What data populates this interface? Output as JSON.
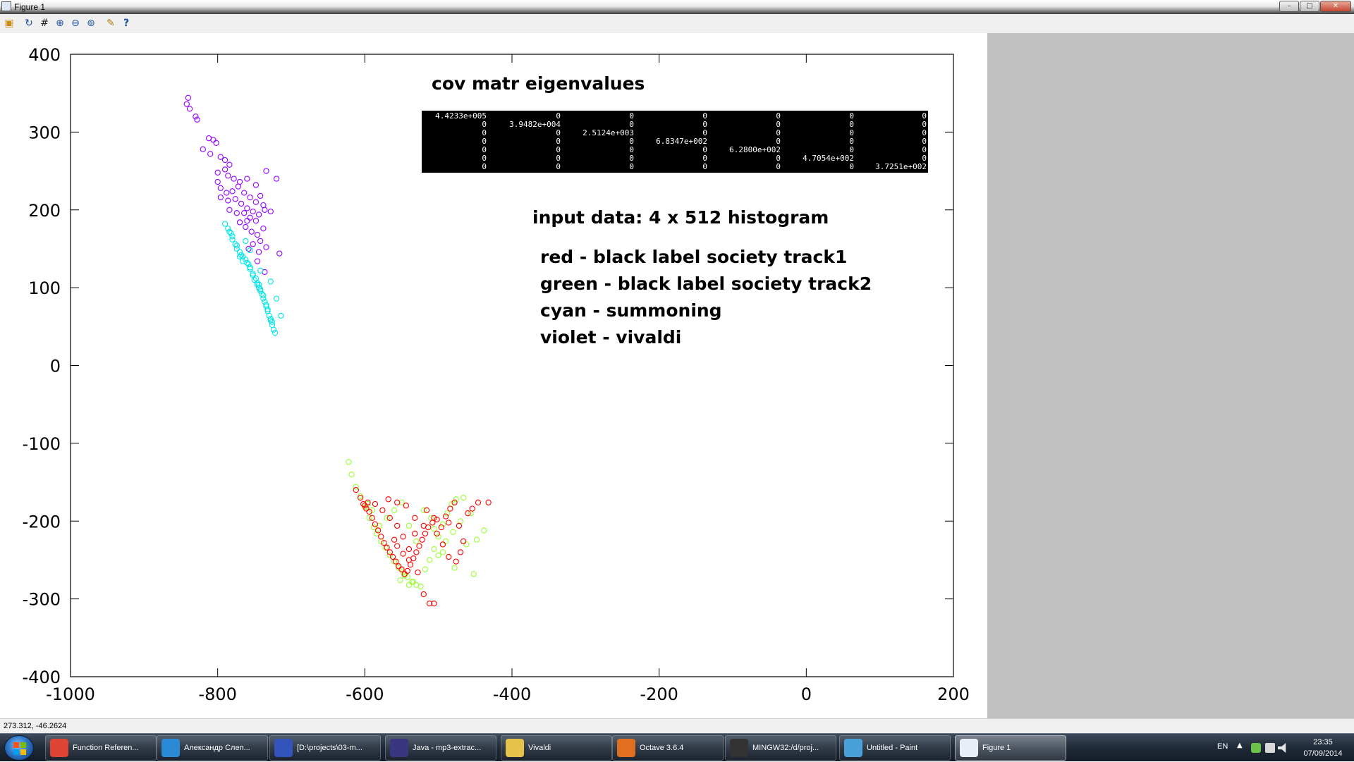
{
  "window": {
    "title": "Figure 1",
    "buttons": [
      "–",
      "□",
      "✕"
    ]
  },
  "toolbar": {
    "icons": [
      "load-icon",
      "rotate-icon",
      "grid-icon",
      "zoom-in-icon",
      "zoom-out-icon",
      "zoom-auto-icon",
      "config-icon",
      "help-icon"
    ]
  },
  "chart_data": {
    "type": "scatter",
    "xlim": [
      -1000,
      200
    ],
    "ylim": [
      -400,
      400
    ],
    "xticks": [
      -1000,
      -800,
      -600,
      -400,
      -200,
      0,
      200
    ],
    "yticks": [
      -400,
      -300,
      -200,
      -100,
      0,
      100,
      200,
      300,
      400
    ],
    "xtick_labels": [
      "-1000",
      "-800",
      "-600",
      "-400",
      "-200",
      "0",
      "200"
    ],
    "ytick_labels": [
      "-400",
      "-300",
      "-200",
      "-100",
      "0",
      "100",
      "200",
      "300",
      "400"
    ],
    "marker": "circle",
    "annotations": {
      "eigen_title": "cov matr eigenvalues",
      "input_text": "input data: 4 x 512 histogram",
      "legend_lines": [
        "red - black label society track1",
        "green - black label society track2",
        "cyan - summoning",
        "violet - vivaldi"
      ]
    },
    "eigen_matrix": [
      [
        "4.4233e+005",
        "0",
        "0",
        "0",
        "0",
        "0",
        "0"
      ],
      [
        "0",
        "3.9482e+004",
        "0",
        "0",
        "0",
        "0",
        "0"
      ],
      [
        "0",
        "0",
        "2.5124e+003",
        "0",
        "0",
        "0",
        "0"
      ],
      [
        "0",
        "0",
        "0",
        "6.8347e+002",
        "0",
        "0",
        "0"
      ],
      [
        "0",
        "0",
        "0",
        "0",
        "6.2800e+002",
        "0",
        "0"
      ],
      [
        "0",
        "0",
        "0",
        "0",
        "0",
        "4.7054e+002",
        "0"
      ],
      [
        "0",
        "0",
        "0",
        "0",
        "0",
        "0",
        "3.7251e+002"
      ]
    ],
    "series": [
      {
        "color": "#9400ff",
        "points": [
          [
            -840,
            344
          ],
          [
            -842,
            336
          ],
          [
            -838,
            330
          ],
          [
            -830,
            320
          ],
          [
            -828,
            316
          ],
          [
            -812,
            292
          ],
          [
            -806,
            290
          ],
          [
            -802,
            286
          ],
          [
            -820,
            278
          ],
          [
            -810,
            272
          ],
          [
            -796,
            268
          ],
          [
            -790,
            264
          ],
          [
            -784,
            258
          ],
          [
            -790,
            252
          ],
          [
            -800,
            248
          ],
          [
            -786,
            244
          ],
          [
            -778,
            240
          ],
          [
            -770,
            236
          ],
          [
            -760,
            240
          ],
          [
            -748,
            232
          ],
          [
            -734,
            250
          ],
          [
            -720,
            240
          ],
          [
            -800,
            236
          ],
          [
            -796,
            228
          ],
          [
            -788,
            222
          ],
          [
            -780,
            224
          ],
          [
            -772,
            230
          ],
          [
            -764,
            222
          ],
          [
            -756,
            216
          ],
          [
            -748,
            210
          ],
          [
            -742,
            218
          ],
          [
            -738,
            206
          ],
          [
            -776,
            214
          ],
          [
            -768,
            208
          ],
          [
            -760,
            202
          ],
          [
            -752,
            198
          ],
          [
            -744,
            194
          ],
          [
            -736,
            200
          ],
          [
            -728,
            198
          ],
          [
            -764,
            196
          ],
          [
            -756,
            190
          ],
          [
            -748,
            186
          ],
          [
            -770,
            184
          ],
          [
            -762,
            178
          ],
          [
            -754,
            172
          ],
          [
            -746,
            168
          ],
          [
            -738,
            176
          ],
          [
            -742,
            160
          ],
          [
            -752,
            156
          ],
          [
            -758,
            150
          ],
          [
            -744,
            146
          ],
          [
            -734,
            152
          ],
          [
            -716,
            144
          ],
          [
            -746,
            134
          ],
          [
            -736,
            120
          ],
          [
            -784,
            200
          ],
          [
            -774,
            196
          ],
          [
            -760,
            186
          ],
          [
            -786,
            212
          ],
          [
            -796,
            216
          ]
        ]
      },
      {
        "color": "#00e5e5",
        "points": [
          [
            -790,
            182
          ],
          [
            -786,
            176
          ],
          [
            -782,
            170
          ],
          [
            -780,
            162
          ],
          [
            -776,
            156
          ],
          [
            -774,
            150
          ],
          [
            -770,
            146
          ],
          [
            -766,
            140
          ],
          [
            -762,
            136
          ],
          [
            -758,
            130
          ],
          [
            -756,
            124
          ],
          [
            -752,
            118
          ],
          [
            -748,
            112
          ],
          [
            -746,
            106
          ],
          [
            -744,
            100
          ],
          [
            -742,
            96
          ],
          [
            -740,
            92
          ],
          [
            -738,
            86
          ],
          [
            -736,
            82
          ],
          [
            -734,
            76
          ],
          [
            -732,
            70
          ],
          [
            -730,
            64
          ],
          [
            -728,
            58
          ],
          [
            -726,
            52
          ],
          [
            -724,
            46
          ],
          [
            -722,
            42
          ],
          [
            -728,
            60
          ],
          [
            -732,
            72
          ],
          [
            -738,
            90
          ],
          [
            -742,
            98
          ],
          [
            -746,
            104
          ],
          [
            -752,
            116
          ],
          [
            -756,
            126
          ],
          [
            -760,
            132
          ],
          [
            -768,
            142
          ],
          [
            -774,
            154
          ],
          [
            -780,
            166
          ],
          [
            -784,
            172
          ],
          [
            -770,
            140
          ],
          [
            -766,
            134
          ],
          [
            -750,
            110
          ],
          [
            -744,
            104
          ],
          [
            -734,
            78
          ],
          [
            -726,
            56
          ],
          [
            -714,
            64
          ],
          [
            -720,
            86
          ],
          [
            -728,
            108
          ],
          [
            -742,
            122
          ],
          [
            -756,
            148
          ],
          [
            -762,
            160
          ]
        ]
      },
      {
        "color": "#99ff33",
        "points": [
          [
            -622,
            -124
          ],
          [
            -618,
            -140
          ],
          [
            -612,
            -156
          ],
          [
            -606,
            -168
          ],
          [
            -600,
            -182
          ],
          [
            -594,
            -196
          ],
          [
            -588,
            -208
          ],
          [
            -584,
            -216
          ],
          [
            -578,
            -226
          ],
          [
            -572,
            -234
          ],
          [
            -566,
            -244
          ],
          [
            -560,
            -252
          ],
          [
            -554,
            -260
          ],
          [
            -548,
            -266
          ],
          [
            -542,
            -272
          ],
          [
            -536,
            -278
          ],
          [
            -530,
            -282
          ],
          [
            -524,
            -284
          ],
          [
            -518,
            -262
          ],
          [
            -512,
            -250
          ],
          [
            -506,
            -236
          ],
          [
            -500,
            -220
          ],
          [
            -494,
            -204
          ],
          [
            -488,
            -190
          ],
          [
            -482,
            -178
          ],
          [
            -476,
            -172
          ],
          [
            -466,
            -170
          ],
          [
            -456,
            -190
          ],
          [
            -448,
            -224
          ],
          [
            -438,
            -212
          ],
          [
            -452,
            -268
          ],
          [
            -470,
            -200
          ],
          [
            -480,
            -214
          ],
          [
            -490,
            -226
          ],
          [
            -500,
            -244
          ],
          [
            -510,
            -196
          ],
          [
            -520,
            -186
          ],
          [
            -530,
            -226
          ],
          [
            -540,
            -206
          ],
          [
            -550,
            -176
          ],
          [
            -560,
            -186
          ],
          [
            -570,
            -196
          ],
          [
            -580,
            -206
          ],
          [
            -590,
            -186
          ],
          [
            -596,
            -178
          ],
          [
            -540,
            -282
          ],
          [
            -534,
            -278
          ],
          [
            -546,
            -270
          ],
          [
            -552,
            -276
          ],
          [
            -506,
            -210
          ],
          [
            -494,
            -240
          ],
          [
            -478,
            -260
          ],
          [
            -462,
            -230
          ]
        ]
      },
      {
        "color": "#ff0000",
        "points": [
          [
            -612,
            -160
          ],
          [
            -606,
            -170
          ],
          [
            -602,
            -178
          ],
          [
            -598,
            -184
          ],
          [
            -594,
            -188
          ],
          [
            -590,
            -196
          ],
          [
            -586,
            -204
          ],
          [
            -582,
            -212
          ],
          [
            -578,
            -220
          ],
          [
            -574,
            -228
          ],
          [
            -570,
            -234
          ],
          [
            -566,
            -240
          ],
          [
            -562,
            -246
          ],
          [
            -558,
            -252
          ],
          [
            -554,
            -258
          ],
          [
            -550,
            -262
          ],
          [
            -546,
            -268
          ],
          [
            -542,
            -264
          ],
          [
            -538,
            -256
          ],
          [
            -534,
            -248
          ],
          [
            -530,
            -240
          ],
          [
            -526,
            -232
          ],
          [
            -522,
            -224
          ],
          [
            -518,
            -216
          ],
          [
            -514,
            -208
          ],
          [
            -508,
            -202
          ],
          [
            -502,
            -198
          ],
          [
            -496,
            -208
          ],
          [
            -490,
            -194
          ],
          [
            -484,
            -184
          ],
          [
            -478,
            -176
          ],
          [
            -472,
            -206
          ],
          [
            -466,
            -226
          ],
          [
            -460,
            -190
          ],
          [
            -454,
            -184
          ],
          [
            -446,
            -176
          ],
          [
            -432,
            -176
          ],
          [
            -512,
            -306
          ],
          [
            -506,
            -306
          ],
          [
            -520,
            -294
          ],
          [
            -528,
            -266
          ],
          [
            -540,
            -236
          ],
          [
            -548,
            -220
          ],
          [
            -556,
            -206
          ],
          [
            -566,
            -196
          ],
          [
            -576,
            -186
          ],
          [
            -586,
            -178
          ],
          [
            -596,
            -176
          ],
          [
            -600,
            -180
          ],
          [
            -560,
            -224
          ],
          [
            -556,
            -232
          ],
          [
            -548,
            -242
          ],
          [
            -540,
            -250
          ],
          [
            -532,
            -216
          ],
          [
            -516,
            -186
          ],
          [
            -502,
            -216
          ],
          [
            -494,
            -230
          ],
          [
            -486,
            -246
          ],
          [
            -476,
            -252
          ],
          [
            -470,
            -240
          ],
          [
            -568,
            -172
          ],
          [
            -556,
            -176
          ],
          [
            -544,
            -180
          ],
          [
            -532,
            -196
          ],
          [
            -520,
            -206
          ],
          [
            -506,
            -196
          ],
          [
            -486,
            -202
          ]
        ]
      }
    ]
  },
  "status": {
    "coords": "273.312, -46.2624"
  },
  "taskbar": {
    "items": [
      {
        "label": "Function Referen...",
        "icon": "chrome-icon",
        "color": "#dd4433"
      },
      {
        "label": "Александр Слеп...",
        "icon": "chat-icon",
        "color": "#2a8ad6"
      },
      {
        "label": "[D:\\projects\\03-m...",
        "icon": "editor-icon",
        "color": "#3355bb"
      },
      {
        "label": "Java - mp3-extrac...",
        "icon": "eclipse-icon",
        "color": "#3a3680"
      },
      {
        "label": "Vivaldi",
        "icon": "folder-icon",
        "color": "#e6c24a"
      },
      {
        "label": "Octave 3.6.4",
        "icon": "octave-icon",
        "color": "#e07020"
      },
      {
        "label": "MINGW32:/d/proj...",
        "icon": "terminal-icon",
        "color": "#333333"
      },
      {
        "label": "Untitled - Paint",
        "icon": "paint-icon",
        "color": "#4aa0d8"
      },
      {
        "label": "Figure 1",
        "icon": "figure-icon",
        "color": "#e8eef6"
      }
    ],
    "tray": {
      "lang": "EN",
      "time": "23:35",
      "date": "07/09/2014"
    }
  }
}
